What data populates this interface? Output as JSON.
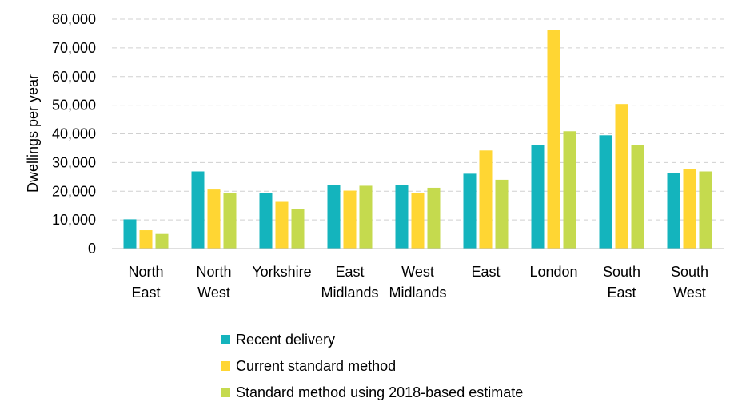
{
  "chart_data": {
    "type": "bar",
    "categories": [
      [
        "North",
        "East"
      ],
      [
        "North",
        "West"
      ],
      [
        "Yorkshire"
      ],
      [
        "East",
        "Midlands"
      ],
      [
        "West",
        "Midlands"
      ],
      [
        "East"
      ],
      [
        "London"
      ],
      [
        "South",
        "East"
      ],
      [
        "South",
        "West"
      ]
    ],
    "series": [
      {
        "name": "Recent delivery",
        "color": "#14b4bd",
        "values": [
          10200,
          26900,
          19400,
          22100,
          22200,
          26100,
          36200,
          39500,
          26400
        ]
      },
      {
        "name": "Current standard method",
        "color": "#ffd633",
        "values": [
          6400,
          20600,
          16300,
          20200,
          19500,
          34200,
          76100,
          50400,
          27600
        ]
      },
      {
        "name": "Standard method using 2018-based estimate",
        "color": "#c5da4e",
        "values": [
          5100,
          19500,
          13800,
          21900,
          21200,
          24000,
          40900,
          36000,
          26900
        ]
      }
    ],
    "ylabel": "Dwellings per year",
    "ylim": [
      0,
      80000
    ],
    "yticks": [
      "0",
      "10,000",
      "20,000",
      "30,000",
      "40,000",
      "50,000",
      "60,000",
      "70,000",
      "80,000"
    ],
    "ytick_values": [
      0,
      10000,
      20000,
      30000,
      40000,
      50000,
      60000,
      70000,
      80000
    ],
    "grid": true,
    "legend_position": "bottom"
  }
}
